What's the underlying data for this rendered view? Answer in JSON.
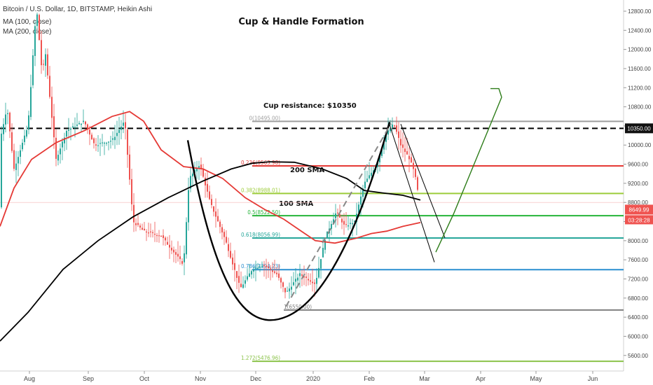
{
  "header": {
    "symbol_line": "Bitcoin / U.S. Dollar, 1D, BITSTAMP, Heikin Ashi",
    "ma100_line": "MA (100, close)",
    "ma200_line": "MA (200, close)"
  },
  "chart_data": {
    "type": "candlestick",
    "title": "Cup & Handle Formation",
    "x_ticks": [
      "Aug",
      "Sep",
      "Oct",
      "Nov",
      "Dec",
      "2020",
      "Feb",
      "Mar",
      "Apr",
      "May",
      "Jun"
    ],
    "y_ticks": [
      "12800.00",
      "12400.00",
      "12000.00",
      "11600.00",
      "11200.00",
      "10800.00",
      "10400.00",
      "10000.00",
      "9600.00",
      "9200.00",
      "8800.00",
      "8400.00",
      "8000.00",
      "7600.00",
      "7200.00",
      "6800.00",
      "6400.00",
      "6000.00",
      "5600.00"
    ],
    "ylim": [
      5200,
      13000
    ],
    "price_label": "8649.99",
    "countdown_label": "03:28:28",
    "resistance_label": "10350.00",
    "fib_levels": [
      {
        "label": "0(10495.00)",
        "value": 10495,
        "color": "#9e9e9e"
      },
      {
        "label": "0.236(9563.98)",
        "value": 9563.98,
        "color": "#e53935"
      },
      {
        "label": "0.382(8988.01)",
        "value": 8988.01,
        "color": "#9ccc3a"
      },
      {
        "label": "0.5(8522.50)",
        "value": 8522.5,
        "color": "#26b43a"
      },
      {
        "label": "0.618(8056.99)",
        "value": 8056.99,
        "color": "#26a69a"
      },
      {
        "label": "0.786(7394.23)",
        "value": 7394.23,
        "color": "#2a8fd0"
      },
      {
        "label": "1(6550.00)",
        "value": 6550,
        "color": "#808080"
      },
      {
        "label": "1.272(5476.96)",
        "value": 5476.96,
        "color": "#8bc34a"
      }
    ],
    "annotations": {
      "resistance_text": "Cup resistance: $10350",
      "sma200_text": "200 SMA",
      "sma100_text": "100 SMA"
    },
    "resistance_value": 10350,
    "price_value": 8649.99,
    "colors": {
      "up": "#26a69a",
      "down": "#ef5350",
      "ma100": "#e53935",
      "ma200": "#000000",
      "projection": "#2e7d1a"
    }
  }
}
